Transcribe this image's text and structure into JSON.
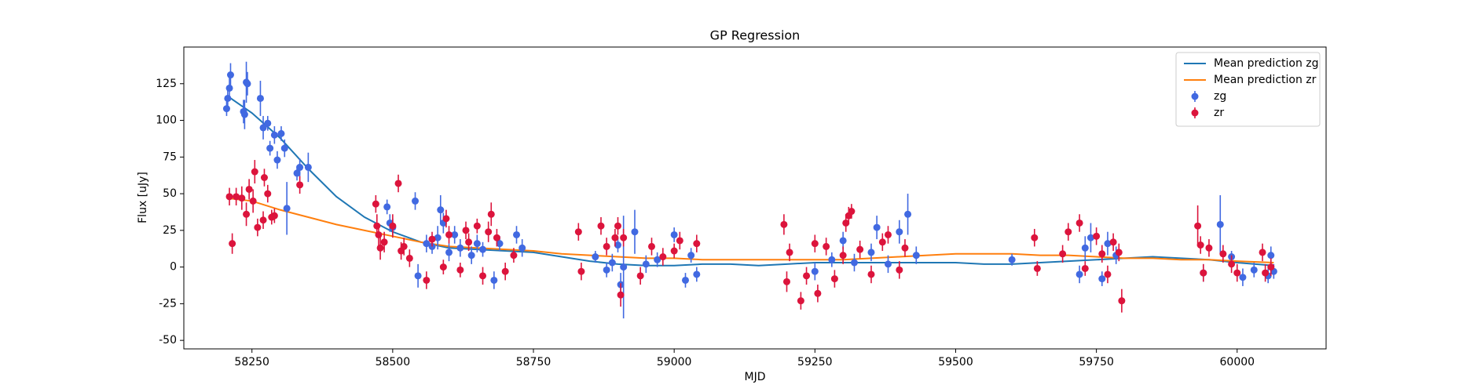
{
  "chart_data": {
    "type": "line",
    "title": "GP Regression",
    "xlabel": "MJD",
    "ylabel": "Flux [uJy]",
    "xlim": [
      58129,
      60158
    ],
    "ylim": [
      -55.8,
      150
    ],
    "xticks": [
      58250,
      58500,
      58750,
      59000,
      59250,
      59500,
      59750,
      60000
    ],
    "yticks": [
      -50,
      -25,
      0,
      25,
      50,
      75,
      100,
      125
    ],
    "grid": false,
    "legend": "upper right",
    "series": [
      {
        "name": "Mean prediction zg",
        "type": "line",
        "color": "#1f77b4",
        "x": [
          58205,
          58250,
          58300,
          58350,
          58400,
          58450,
          58500,
          58550,
          58600,
          58650,
          58700,
          58750,
          58800,
          58850,
          58900,
          58950,
          59000,
          59050,
          59100,
          59150,
          59200,
          59250,
          59300,
          59350,
          59400,
          59450,
          59500,
          59550,
          59600,
          59650,
          59700,
          59750,
          59800,
          59850,
          59900,
          59950,
          60000,
          60065
        ],
        "values": [
          117,
          105,
          88,
          67,
          48,
          34,
          24,
          17,
          13,
          12,
          11,
          10,
          7,
          4,
          2,
          1,
          1,
          2,
          2,
          1,
          2,
          3,
          3,
          3,
          3,
          3,
          3,
          2,
          2,
          3,
          4,
          5,
          6,
          7,
          6,
          5,
          3,
          1
        ]
      },
      {
        "name": "Mean prediction zr",
        "type": "line",
        "color": "#ff7f0e",
        "x": [
          58205,
          58250,
          58300,
          58350,
          58400,
          58450,
          58500,
          58550,
          58600,
          58650,
          58700,
          58750,
          58800,
          58850,
          58900,
          58950,
          59000,
          59050,
          59100,
          59150,
          59200,
          59250,
          59300,
          59350,
          59400,
          59450,
          59500,
          59550,
          59600,
          59650,
          59700,
          59750,
          59800,
          59850,
          59900,
          59950,
          60000,
          60065
        ],
        "values": [
          47,
          45,
          39,
          34,
          29,
          25,
          21,
          17,
          14,
          13,
          12,
          11,
          9,
          8,
          7,
          6,
          6,
          5,
          5,
          5,
          5,
          5,
          5,
          6,
          7,
          8,
          9,
          9,
          9,
          8,
          8,
          7,
          6,
          6,
          5,
          5,
          4,
          3
        ]
      },
      {
        "name": "zg",
        "type": "errorbar",
        "color": "#4169e1",
        "x": [
          58205,
          58207,
          58210,
          58212,
          58235,
          58237,
          58240,
          58242,
          58265,
          58270,
          58278,
          58282,
          58290,
          58295,
          58302,
          58308,
          58312,
          58330,
          58335,
          58350,
          58490,
          58495,
          58500,
          58540,
          58545,
          58560,
          58570,
          58580,
          58585,
          58590,
          58600,
          58610,
          58620,
          58640,
          58650,
          58660,
          58680,
          58690,
          58720,
          58730,
          58860,
          58880,
          58890,
          58900,
          58905,
          58910,
          58930,
          58950,
          58970,
          59000,
          59020,
          59030,
          59040,
          59250,
          59280,
          59300,
          59320,
          59350,
          59360,
          59380,
          59400,
          59415,
          59430,
          59600,
          59720,
          59730,
          59740,
          59760,
          59770,
          59785,
          59940,
          59970,
          59990,
          60010,
          60030,
          60055,
          60060,
          60065
        ],
        "values": [
          108,
          115,
          122,
          131,
          106,
          104,
          126,
          125,
          115,
          95,
          98,
          81,
          90,
          73,
          91,
          81,
          40,
          64,
          68,
          68,
          41,
          30,
          27,
          45,
          -6,
          16,
          14,
          20,
          39,
          30,
          10,
          22,
          13,
          8,
          16,
          12,
          -9,
          16,
          22,
          13,
          7,
          -2,
          3,
          15,
          -12,
          0,
          24,
          2,
          5,
          22,
          -9,
          8,
          -5,
          -3,
          5,
          18,
          3,
          10,
          27,
          2,
          24,
          36,
          8,
          5,
          -5,
          13,
          20,
          -8,
          16,
          8,
          -4,
          29,
          7,
          -7,
          -2,
          -6,
          8,
          -3
        ],
        "errors": [
          5,
          6,
          7,
          8,
          8,
          10,
          14,
          8,
          12,
          8,
          5,
          5,
          6,
          6,
          5,
          6,
          18,
          5,
          6,
          10,
          5,
          6,
          6,
          6,
          8,
          6,
          5,
          8,
          10,
          7,
          6,
          6,
          6,
          6,
          6,
          5,
          6,
          5,
          6,
          6,
          4,
          5,
          6,
          5,
          8,
          35,
          15,
          6,
          5,
          5,
          5,
          5,
          5,
          6,
          5,
          6,
          6,
          6,
          8,
          6,
          8,
          14,
          6,
          4,
          6,
          8,
          10,
          5,
          8,
          6,
          6,
          20,
          4,
          6,
          5,
          5,
          6,
          5
        ]
      },
      {
        "name": "zr",
        "type": "errorbar",
        "color": "#dc143c",
        "x": [
          58210,
          58215,
          58222,
          58232,
          58240,
          58245,
          58252,
          58255,
          58260,
          58270,
          58272,
          58278,
          58285,
          58290,
          58335,
          58470,
          58472,
          58475,
          58478,
          58485,
          58500,
          58510,
          58515,
          58520,
          58530,
          58560,
          58570,
          58590,
          58595,
          58600,
          58620,
          58630,
          58635,
          58650,
          58660,
          58670,
          58675,
          58685,
          58700,
          58715,
          58830,
          58835,
          58870,
          58880,
          58895,
          58900,
          58905,
          58910,
          58940,
          58960,
          58980,
          59000,
          59010,
          59040,
          59195,
          59200,
          59205,
          59225,
          59235,
          59250,
          59255,
          59270,
          59285,
          59300,
          59305,
          59310,
          59315,
          59330,
          59350,
          59370,
          59380,
          59400,
          59410,
          59640,
          59645,
          59690,
          59700,
          59720,
          59730,
          59750,
          59760,
          59770,
          59780,
          59790,
          59795,
          59930,
          59935,
          59940,
          59950,
          59975,
          59990,
          60000,
          60045,
          60050,
          60060
        ],
        "values": [
          48,
          16,
          48,
          47,
          36,
          53,
          45,
          65,
          27,
          32,
          61,
          50,
          34,
          35,
          56,
          43,
          28,
          22,
          13,
          17,
          28,
          57,
          11,
          14,
          6,
          -9,
          19,
          0,
          33,
          22,
          -2,
          25,
          17,
          28,
          -6,
          24,
          36,
          20,
          -3,
          8,
          24,
          -3,
          28,
          14,
          20,
          28,
          -19,
          20,
          -6,
          14,
          7,
          11,
          18,
          16,
          29,
          -10,
          10,
          -23,
          -6,
          16,
          -18,
          14,
          -8,
          8,
          30,
          35,
          38,
          12,
          -5,
          17,
          22,
          -2,
          13,
          20,
          -1,
          9,
          24,
          30,
          -1,
          21,
          9,
          -5,
          17,
          10,
          -23,
          28,
          15,
          -4,
          13,
          9,
          2,
          -4,
          10,
          -4,
          0
        ],
        "errors": [
          6,
          7,
          6,
          8,
          8,
          7,
          8,
          8,
          6,
          6,
          6,
          6,
          5,
          5,
          6,
          6,
          8,
          8,
          8,
          7,
          8,
          6,
          6,
          6,
          6,
          6,
          5,
          5,
          6,
          6,
          5,
          6,
          6,
          5,
          6,
          7,
          8,
          6,
          6,
          5,
          6,
          6,
          6,
          6,
          6,
          6,
          8,
          6,
          6,
          6,
          6,
          5,
          6,
          6,
          7,
          7,
          6,
          6,
          6,
          6,
          6,
          6,
          6,
          6,
          6,
          6,
          5,
          6,
          6,
          6,
          6,
          6,
          6,
          6,
          5,
          6,
          6,
          6,
          5,
          6,
          6,
          6,
          6,
          6,
          8,
          14,
          6,
          6,
          6,
          6,
          6,
          6,
          6,
          6,
          6
        ]
      }
    ]
  }
}
